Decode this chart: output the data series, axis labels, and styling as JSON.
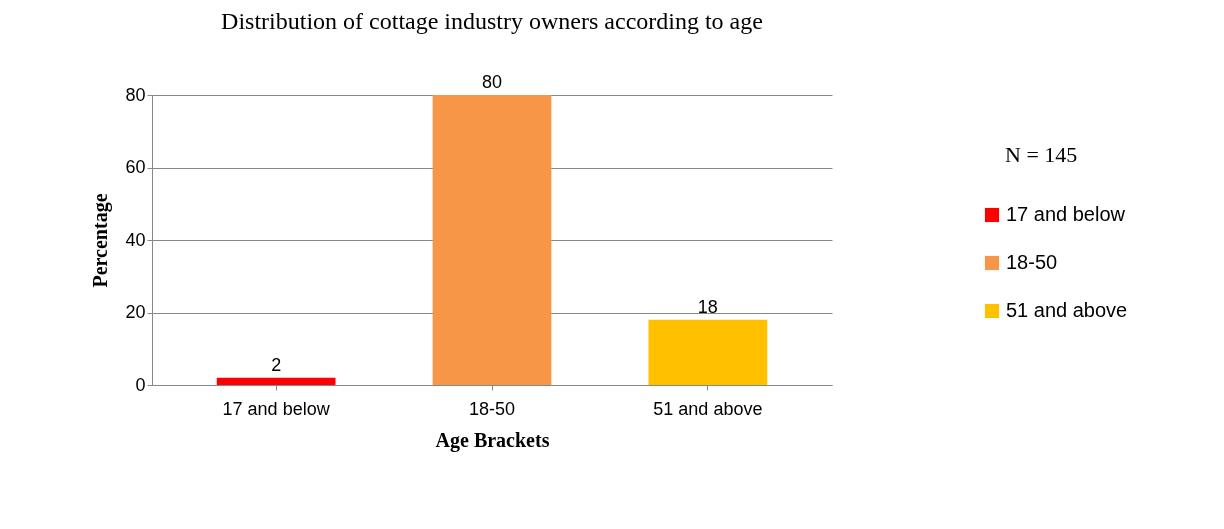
{
  "chart_data": {
    "type": "bar",
    "title": "Distribution of cottage industry owners according to age",
    "xlabel": "Age Brackets",
    "ylabel": "Percentage",
    "categories": [
      "17 and below",
      "18-50",
      "51 and above"
    ],
    "series": [
      {
        "name": "17 and below",
        "color": "#ff0000",
        "values": [
          2,
          null,
          null
        ]
      },
      {
        "name": "18-50",
        "color": "#f79646",
        "values": [
          null,
          80,
          null
        ]
      },
      {
        "name": "51 and above",
        "color": "#ffc000",
        "values": [
          null,
          null,
          18
        ]
      }
    ],
    "stacked": true,
    "ylim": [
      0,
      80
    ],
    "yticks": [
      0,
      20,
      40,
      60,
      80
    ],
    "grid": "y",
    "legend": "right",
    "data_labels": true,
    "annotations": [
      "N = 145"
    ]
  }
}
